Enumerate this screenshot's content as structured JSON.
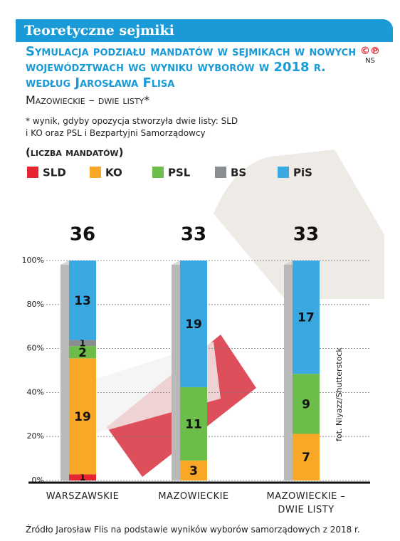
{
  "header": "Teoretyczne sejmiki",
  "logo": {
    "symbols": "©℗",
    "initials": "NS"
  },
  "chart_data": {
    "type": "bar",
    "stacked": "percent",
    "title": "Symulacja podziału mandatów w sejmikach w nowych województwach wg wyniku wyborów w 2018 r. według Jarosława Flisa",
    "subtitle": "Mazowieckie – dwie listy*",
    "footnote": "* wynik, gdyby opozycja stworzyła dwie listy: SLD i KO oraz PSL i Bezpartyjni Samorządowcy",
    "y_label": "(liczba mandatów)",
    "categories": [
      "WARSZAWSKIE",
      "MAZOWIECKIE",
      "MAZOWIECKIE – DWIE LISTY"
    ],
    "totals": [
      36,
      33,
      33
    ],
    "series": [
      {
        "name": "SLD",
        "color": "#e5252f",
        "values": [
          1,
          0,
          0
        ]
      },
      {
        "name": "KO",
        "color": "#f8a727",
        "values": [
          19,
          3,
          7
        ]
      },
      {
        "name": "PSL",
        "color": "#6cbd4a",
        "values": [
          2,
          11,
          9
        ]
      },
      {
        "name": "BS",
        "color": "#8b8e91",
        "values": [
          1,
          0,
          0
        ]
      },
      {
        "name": "PiS",
        "color": "#3aa9e2",
        "values": [
          13,
          19,
          17
        ]
      }
    ],
    "ylim": [
      0,
      100
    ],
    "yticks": [
      {
        "value": 0,
        "label": "0%"
      },
      {
        "value": 20,
        "label": "20%"
      },
      {
        "value": 40,
        "label": "40%"
      },
      {
        "value": 60,
        "label": "60%"
      },
      {
        "value": 80,
        "label": "80%"
      },
      {
        "value": 100,
        "label": "100%"
      }
    ],
    "grid": true,
    "source": "Źródło Jarosław Flis na podstawie wyników wyborów samorządowych z 2018 r.",
    "photo_credit": "fot. Niyazz/Shutterstock"
  }
}
